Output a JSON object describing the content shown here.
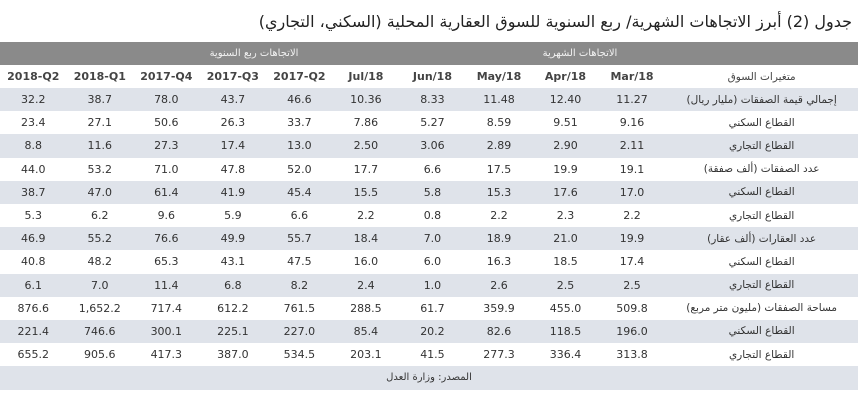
{
  "title": "جدول (2) أبرز الاتجاهات الشهرية/ ربع السنوية للسوق العقارية المحلية (السكني، التجاري)",
  "group_headers": {
    "monthly": "الاتجاهات الشهرية",
    "quarterly": "الاتجاهات ربع السنوية"
  },
  "columns": {
    "label": "متغيرات السوق",
    "periods": [
      "Mar/18",
      "Apr/18",
      "May/18",
      "Jun/18",
      "Jul/18",
      "2017-Q2",
      "2017-Q3",
      "2017-Q4",
      "2018-Q1",
      "2018-Q2"
    ]
  },
  "rows": [
    {
      "label": "إجمالي قيمة الصفقات (مليار ريال)",
      "values": [
        "11.27",
        "12.40",
        "11.48",
        "8.33",
        "10.36",
        "46.6",
        "43.7",
        "78.0",
        "38.7",
        "32.2"
      ]
    },
    {
      "label": "القطاع السكني",
      "values": [
        "9.16",
        "9.51",
        "8.59",
        "5.27",
        "7.86",
        "33.7",
        "26.3",
        "50.6",
        "27.1",
        "23.4"
      ]
    },
    {
      "label": "القطاع التجاري",
      "values": [
        "2.11",
        "2.90",
        "2.89",
        "3.06",
        "2.50",
        "13.0",
        "17.4",
        "27.3",
        "11.6",
        "8.8"
      ]
    },
    {
      "label": "عدد الصفقات (ألف صفقة)",
      "values": [
        "19.1",
        "19.9",
        "17.5",
        "6.6",
        "17.7",
        "52.0",
        "47.8",
        "71.0",
        "53.2",
        "44.0"
      ]
    },
    {
      "label": "القطاع السكني",
      "values": [
        "17.0",
        "17.6",
        "15.3",
        "5.8",
        "15.5",
        "45.4",
        "41.9",
        "61.4",
        "47.0",
        "38.7"
      ]
    },
    {
      "label": "القطاع التجاري",
      "values": [
        "2.2",
        "2.3",
        "2.2",
        "0.8",
        "2.2",
        "6.6",
        "5.9",
        "9.6",
        "6.2",
        "5.3"
      ]
    },
    {
      "label": "عدد العقارات (ألف عقار)",
      "values": [
        "19.9",
        "21.0",
        "18.9",
        "7.0",
        "18.4",
        "55.7",
        "49.9",
        "76.6",
        "55.2",
        "46.9"
      ]
    },
    {
      "label": "القطاع السكني",
      "values": [
        "17.4",
        "18.5",
        "16.3",
        "6.0",
        "16.0",
        "47.5",
        "43.1",
        "65.3",
        "48.2",
        "40.8"
      ]
    },
    {
      "label": "القطاع التجاري",
      "values": [
        "2.5",
        "2.5",
        "2.6",
        "1.0",
        "2.4",
        "8.2",
        "6.8",
        "11.4",
        "7.0",
        "6.1"
      ]
    },
    {
      "label": "مساحة الصفقات (مليون متر مربع)",
      "values": [
        "509.8",
        "455.0",
        "359.9",
        "61.7",
        "288.5",
        "761.5",
        "612.2",
        "717.4",
        "1,652.2",
        "876.6"
      ]
    },
    {
      "label": "القطاع السكني",
      "values": [
        "196.0",
        "118.5",
        "82.6",
        "20.2",
        "85.4",
        "227.0",
        "225.1",
        "300.1",
        "746.6",
        "221.4"
      ]
    },
    {
      "label": "القطاع التجاري",
      "values": [
        "313.8",
        "336.4",
        "277.3",
        "41.5",
        "203.1",
        "534.5",
        "387.0",
        "417.3",
        "905.6",
        "655.2"
      ]
    }
  ],
  "source": "المصدر: وزارة العدل",
  "colors": {
    "group_header_bg": "#8a8a8a",
    "shaded_row_bg": "#dfe3ea",
    "text": "#333333"
  }
}
